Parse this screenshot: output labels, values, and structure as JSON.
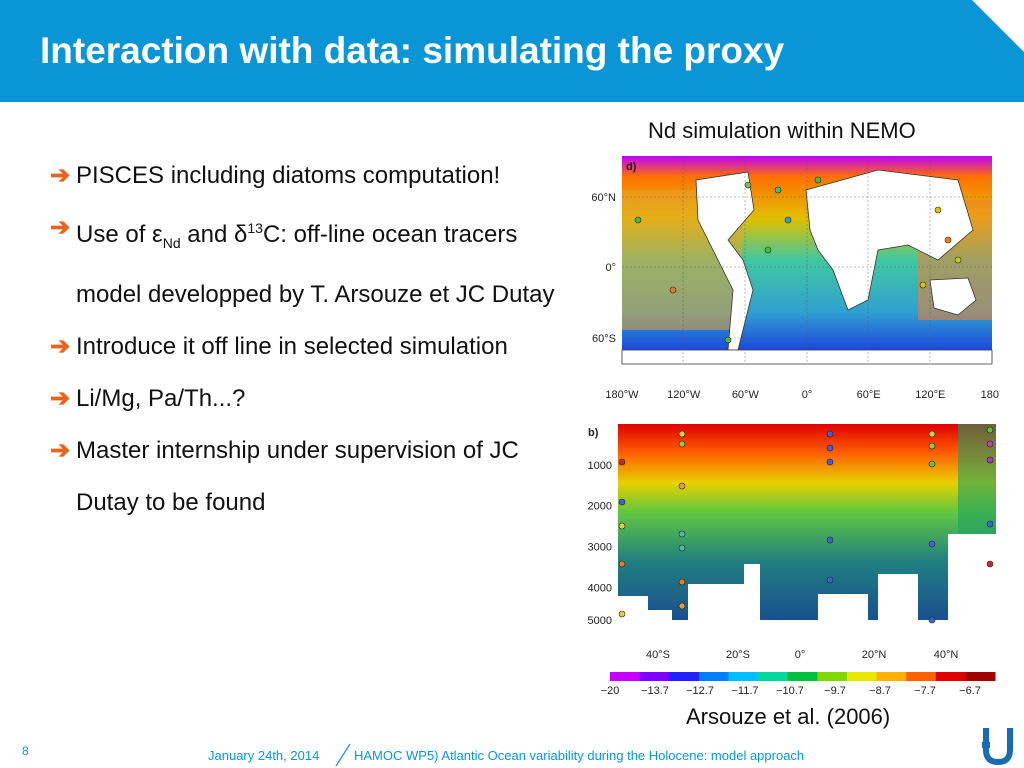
{
  "header": {
    "title": "Interaction with data: simulating the proxy"
  },
  "bullets": [
    {
      "segments": [
        {
          "t": "PISCES including diatoms computation!"
        }
      ]
    },
    {
      "segments": [
        {
          "t": "Use of ε"
        },
        {
          "sub": "Nd"
        },
        {
          "t": " and δ"
        },
        {
          "sup": "13"
        },
        {
          "t": "C: off-line ocean tracers model developped by T. Arsouze et JC Dutay"
        }
      ]
    },
    {
      "segments": [
        {
          "t": "Introduce it off line in selected simulation"
        }
      ]
    },
    {
      "segments": [
        {
          "t": "Li/Mg, Pa/Th...?"
        }
      ]
    },
    {
      "segments": [
        {
          "t": "Master internship under supervision of JC Dutay to be found"
        }
      ]
    }
  ],
  "figure": {
    "caption_top": "Nd simulation within NEMO",
    "caption_bottom": "Arsouze et al. (2006)",
    "map_panel_label": "d)",
    "map_lat_ticks": [
      "60°N",
      "0°",
      "60°S"
    ],
    "map_lon_ticks": [
      "180°W",
      "120°W",
      "60°W",
      "0°",
      "60°E",
      "120°E",
      "180°"
    ],
    "section_panel_label": "b)",
    "section_depth_ticks": [
      "1000",
      "2000",
      "3000",
      "4000",
      "5000"
    ],
    "section_lat_ticks": [
      "40°S",
      "20°S",
      "0°",
      "20°N",
      "40°N"
    ],
    "colorbar_ticks": [
      "−20",
      "−13.7",
      "−12.7",
      "−11.7",
      "−10.7",
      "−9.7",
      "−8.7",
      "−7.7",
      "−6.7"
    ],
    "colorbar_colors": [
      "#c800ff",
      "#8000ff",
      "#2020ff",
      "#0080ff",
      "#00c0ff",
      "#00d8a0",
      "#00c040",
      "#80d800",
      "#e8e800",
      "#ffb000",
      "#ff6000",
      "#e00000",
      "#a00000"
    ]
  },
  "footer": {
    "page_number": "8",
    "date": "January 24th, 2014",
    "talk_title": "HAMOC WP5) Atlantic Ocean variability during the Holocene: model approach"
  },
  "colors": {
    "header_bg": "#0a96d6",
    "accent_arrow": "#e8641b",
    "footer_text": "#0a96d6"
  }
}
